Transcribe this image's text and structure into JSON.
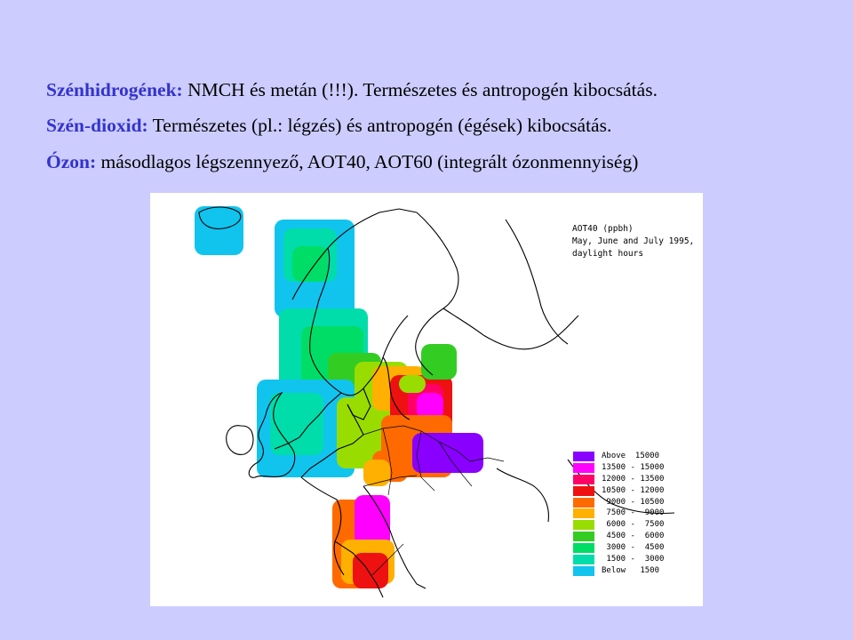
{
  "text_lines": [
    {
      "term": "Szénhidrogének:",
      "text": " NMCH és metán (!!!). Természetes és antropogén kibocsátás."
    },
    {
      "term": "Szén-dioxid:",
      "text": " Természetes (pl.: légzés) és antropogén (égések) kibocsátás."
    },
    {
      "term": "Ózon:",
      "text": " másodlagos légszennyező, AOT40, AOT60 (integrált ózonmennyiség)"
    }
  ],
  "map": {
    "title_lines": [
      "AOT40 (ppbh)",
      "May, June and July 1995,",
      "daylight hours"
    ],
    "legend": [
      {
        "label": "Above  15000",
        "color": "#8a00ff"
      },
      {
        "label": "13500 - 15000",
        "color": "#ff00ff"
      },
      {
        "label": "12000 - 13500",
        "color": "#ff0066"
      },
      {
        "label": "10500 - 12000",
        "color": "#ee1111"
      },
      {
        "label": " 9000 - 10500",
        "color": "#ff6a00"
      },
      {
        "label": " 7500 -  9000",
        "color": "#ffb000"
      },
      {
        "label": " 6000 -  7500",
        "color": "#99dd00"
      },
      {
        "label": " 4500 -  6000",
        "color": "#33cc22"
      },
      {
        "label": " 3000 -  4500",
        "color": "#00dd66"
      },
      {
        "label": " 1500 -  3000",
        "color": "#00ddaa"
      },
      {
        "label": "Below   1500",
        "color": "#11c4ee"
      }
    ]
  }
}
